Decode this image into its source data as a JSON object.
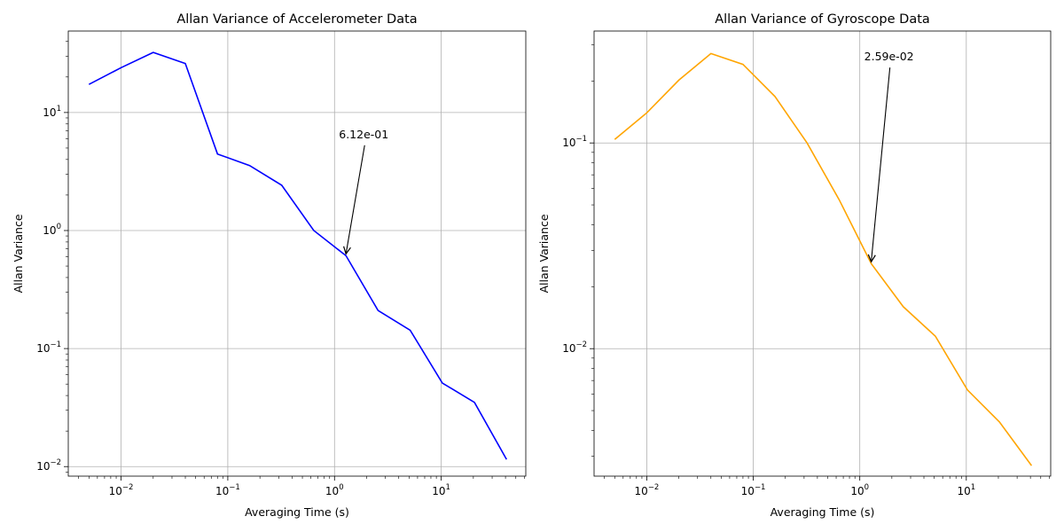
{
  "chart_data": [
    {
      "type": "line",
      "title": "Allan Variance of Accelerometer Data",
      "xlabel": "Averaging Time (s)",
      "ylabel": "Allan Variance",
      "xscale": "log",
      "yscale": "log",
      "xlim": [
        0.0032,
        62
      ],
      "ylim": [
        0.0083,
        49
      ],
      "grid": true,
      "x_ticks": [
        {
          "value": 0.01,
          "base": "10",
          "exp": "−2"
        },
        {
          "value": 0.1,
          "base": "10",
          "exp": "−1"
        },
        {
          "value": 1,
          "base": "10",
          "exp": "0"
        },
        {
          "value": 10,
          "base": "10",
          "exp": "1"
        }
      ],
      "y_ticks": [
        {
          "value": 0.01,
          "base": "10",
          "exp": "−2"
        },
        {
          "value": 0.1,
          "base": "10",
          "exp": "−1"
        },
        {
          "value": 1,
          "base": "10",
          "exp": "0"
        },
        {
          "value": 10,
          "base": "10",
          "exp": "1"
        }
      ],
      "series": [
        {
          "color": "#0000ff",
          "x": [
            0.005,
            0.01,
            0.02,
            0.04,
            0.08,
            0.16,
            0.32,
            0.64,
            1.28,
            2.56,
            5.12,
            10.24,
            20.48,
            40.96
          ],
          "y": [
            17.3,
            24.0,
            32.3,
            26.0,
            4.45,
            3.55,
            2.42,
            1.0,
            0.612,
            0.21,
            0.143,
            0.051,
            0.035,
            0.0115
          ]
        }
      ],
      "annotation": {
        "text": "6.12e-01",
        "point": [
          1.28,
          0.612
        ],
        "text_pos": [
          1.1,
          6.5
        ]
      }
    },
    {
      "type": "line",
      "title": "Allan Variance of Gyroscope Data",
      "xlabel": "Averaging Time (s)",
      "ylabel": "Allan Variance",
      "xscale": "log",
      "yscale": "log",
      "xlim": [
        0.0032,
        62
      ],
      "ylim": [
        0.0024,
        0.35
      ],
      "grid": true,
      "x_ticks": [
        {
          "value": 0.01,
          "base": "10",
          "exp": "−2"
        },
        {
          "value": 0.1,
          "base": "10",
          "exp": "−1"
        },
        {
          "value": 1,
          "base": "10",
          "exp": "0"
        },
        {
          "value": 10,
          "base": "10",
          "exp": "1"
        }
      ],
      "y_ticks": [
        {
          "value": 0.01,
          "base": "10",
          "exp": "−2"
        },
        {
          "value": 0.1,
          "base": "10",
          "exp": "−1"
        }
      ],
      "series": [
        {
          "color": "#ffa500",
          "x": [
            0.005,
            0.01,
            0.02,
            0.04,
            0.08,
            0.16,
            0.32,
            0.64,
            1.28,
            2.56,
            5.12,
            10.24,
            20.48,
            40.96
          ],
          "y": [
            0.104,
            0.14,
            0.202,
            0.272,
            0.241,
            0.168,
            0.1,
            0.053,
            0.0259,
            0.016,
            0.0115,
            0.0063,
            0.0044,
            0.0027
          ]
        }
      ],
      "annotation": {
        "text": "2.59e-02",
        "point": [
          1.28,
          0.0259
        ],
        "text_pos": [
          1.1,
          0.262
        ]
      }
    }
  ]
}
